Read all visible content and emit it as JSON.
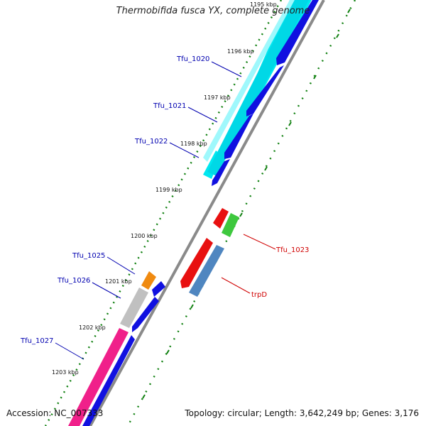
{
  "title": "Thermobifida fusca YX, complete genome",
  "footer": {
    "accession": "Accession: NC_007333",
    "topology": "Topology: circular; Length: 3,642,249 bp; Genes: 3,176"
  },
  "tick_labels": [
    "1195 kbp",
    "1196 kbp",
    "1197 kbp",
    "1198 kbp",
    "1199 kbp",
    "1200 kbp",
    "1201 kbp",
    "1202 kbp",
    "1203 kbp"
  ],
  "gene_labels": {
    "tfu_1020": "Tfu_1020",
    "tfu_1021": "Tfu_1021",
    "tfu_1022": "Tfu_1022",
    "tfu_1023": "Tfu_1023",
    "trpD": "trpD",
    "tfu_1025": "Tfu_1025",
    "tfu_1026": "Tfu_1026",
    "tfu_1027": "Tfu_1027"
  },
  "colors": {
    "backbone": "#8a8a8a",
    "cds_reverse": "#1010e0",
    "cds_forward": "#e81010",
    "cyan_feature": "#00e8f0",
    "pink_feature": "#f0208a",
    "gray_feature": "#c0c0c0",
    "orange_feature": "#f08a10",
    "green_feature": "#3ec83e",
    "steelblue_feature": "#4f86c0",
    "tick": "#108010",
    "label_left": "#0000b0",
    "label_right": "#d00000"
  }
}
